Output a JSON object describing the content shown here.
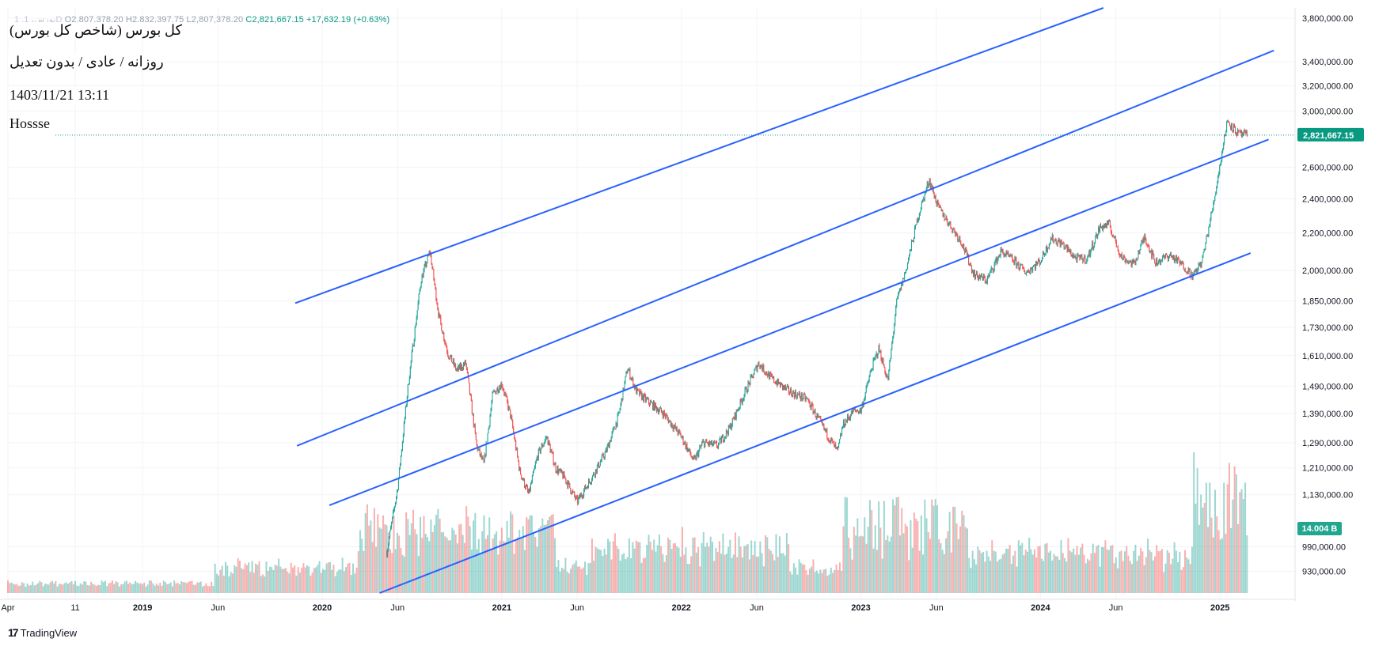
{
  "header": {
    "symbol": "1 ,بورس، 1D",
    "open": "O2,807,378.20",
    "high": "H2,832,397.75",
    "low": "L2,807,378.20",
    "close": "C2,821,667.15",
    "change": "+17,632.19 (+0.63%)"
  },
  "notes": {
    "title": "(کل بورس (شاخص کل بورس",
    "subtitle": "روزانه / عادی / بدون تعدیل",
    "datetime": "1403/11/21 13:11",
    "author": "Hossse"
  },
  "branding": {
    "logo": "17",
    "name": "TradingView"
  },
  "colors": {
    "up": "#26a69a",
    "down": "#ef5350",
    "line": "#2962ff",
    "priceTag": "#089981"
  },
  "chart_data": {
    "type": "candlestick",
    "y_scale": "log",
    "ylim": [
      880000,
      3900000
    ],
    "y_ticks": [
      {
        "label": "3,800,000.00",
        "value": 3800000
      },
      {
        "label": "3,400,000.00",
        "value": 3400000
      },
      {
        "label": "3,200,000.00",
        "value": 3200000
      },
      {
        "label": "3,000,000.00",
        "value": 3000000
      },
      {
        "label": "2,600,000.00",
        "value": 2600000
      },
      {
        "label": "2,400,000.00",
        "value": 2400000
      },
      {
        "label": "2,200,000.00",
        "value": 2200000
      },
      {
        "label": "2,000,000.00",
        "value": 2000000
      },
      {
        "label": "1,850,000.00",
        "value": 1850000
      },
      {
        "label": "1,730,000.00",
        "value": 1730000
      },
      {
        "label": "1,610,000.00",
        "value": 1610000
      },
      {
        "label": "1,490,000.00",
        "value": 1490000
      },
      {
        "label": "1,390,000.00",
        "value": 1390000
      },
      {
        "label": "1,290,000.00",
        "value": 1290000
      },
      {
        "label": "1,210,000.00",
        "value": 1210000
      },
      {
        "label": "1,130,000.00",
        "value": 1130000
      },
      {
        "label": "990,000.00",
        "value": 990000
      },
      {
        "label": "930,000.00",
        "value": 930000
      }
    ],
    "x_range": [
      2018.25,
      2025.4
    ],
    "x_ticks": [
      {
        "label": "Apr",
        "t": 2018.25,
        "bold": false
      },
      {
        "label": "11",
        "t": 2018.625,
        "bold": false
      },
      {
        "label": "2019",
        "t": 2019.0,
        "bold": true
      },
      {
        "label": "Jun",
        "t": 2019.42,
        "bold": false
      },
      {
        "label": "2020",
        "t": 2020.0,
        "bold": true
      },
      {
        "label": "Jun",
        "t": 2020.42,
        "bold": false
      },
      {
        "label": "2021",
        "t": 2021.0,
        "bold": true
      },
      {
        "label": "Jun",
        "t": 2021.42,
        "bold": false
      },
      {
        "label": "2022",
        "t": 2022.0,
        "bold": true
      },
      {
        "label": "Jun",
        "t": 2022.42,
        "bold": false
      },
      {
        "label": "2023",
        "t": 2023.0,
        "bold": true
      },
      {
        "label": "Jun",
        "t": 2023.42,
        "bold": false
      },
      {
        "label": "2024",
        "t": 2024.0,
        "bold": true
      },
      {
        "label": "Jun",
        "t": 2024.42,
        "bold": false
      },
      {
        "label": "2025",
        "t": 2025.0,
        "bold": true
      }
    ],
    "price_path": [
      [
        2020.35,
        950000
      ],
      [
        2020.42,
        1150000
      ],
      [
        2020.48,
        1500000
      ],
      [
        2020.55,
        1950000
      ],
      [
        2020.6,
        2100000
      ],
      [
        2020.65,
        1780000
      ],
      [
        2020.7,
        1620000
      ],
      [
        2020.75,
        1550000
      ],
      [
        2020.8,
        1580000
      ],
      [
        2020.86,
        1280000
      ],
      [
        2020.9,
        1220000
      ],
      [
        2020.95,
        1460000
      ],
      [
        2021.0,
        1500000
      ],
      [
        2021.05,
        1380000
      ],
      [
        2021.1,
        1200000
      ],
      [
        2021.15,
        1130000
      ],
      [
        2021.2,
        1250000
      ],
      [
        2021.25,
        1310000
      ],
      [
        2021.3,
        1210000
      ],
      [
        2021.35,
        1180000
      ],
      [
        2021.42,
        1110000
      ],
      [
        2021.5,
        1180000
      ],
      [
        2021.58,
        1260000
      ],
      [
        2021.65,
        1380000
      ],
      [
        2021.7,
        1560000
      ],
      [
        2021.75,
        1470000
      ],
      [
        2021.8,
        1440000
      ],
      [
        2021.9,
        1390000
      ],
      [
        2022.0,
        1310000
      ],
      [
        2022.07,
        1230000
      ],
      [
        2022.12,
        1290000
      ],
      [
        2022.2,
        1280000
      ],
      [
        2022.27,
        1340000
      ],
      [
        2022.35,
        1460000
      ],
      [
        2022.43,
        1580000
      ],
      [
        2022.5,
        1520000
      ],
      [
        2022.6,
        1470000
      ],
      [
        2022.7,
        1440000
      ],
      [
        2022.8,
        1330000
      ],
      [
        2022.87,
        1260000
      ],
      [
        2022.9,
        1350000
      ],
      [
        2022.96,
        1400000
      ],
      [
        2023.0,
        1400000
      ],
      [
        2023.06,
        1560000
      ],
      [
        2023.1,
        1640000
      ],
      [
        2023.15,
        1510000
      ],
      [
        2023.2,
        1850000
      ],
      [
        2023.25,
        2000000
      ],
      [
        2023.32,
        2300000
      ],
      [
        2023.38,
        2520000
      ],
      [
        2023.43,
        2350000
      ],
      [
        2023.5,
        2240000
      ],
      [
        2023.56,
        2150000
      ],
      [
        2023.63,
        1980000
      ],
      [
        2023.7,
        1950000
      ],
      [
        2023.78,
        2100000
      ],
      [
        2023.85,
        2050000
      ],
      [
        2023.92,
        1990000
      ],
      [
        2024.0,
        2050000
      ],
      [
        2024.06,
        2170000
      ],
      [
        2024.12,
        2140000
      ],
      [
        2024.2,
        2060000
      ],
      [
        2024.26,
        2060000
      ],
      [
        2024.33,
        2230000
      ],
      [
        2024.38,
        2250000
      ],
      [
        2024.45,
        2070000
      ],
      [
        2024.52,
        2030000
      ],
      [
        2024.58,
        2180000
      ],
      [
        2024.64,
        2040000
      ],
      [
        2024.72,
        2080000
      ],
      [
        2024.8,
        2020000
      ],
      [
        2024.85,
        1970000
      ],
      [
        2024.9,
        2050000
      ],
      [
        2024.96,
        2350000
      ],
      [
        2025.0,
        2620000
      ],
      [
        2025.04,
        2930000
      ],
      [
        2025.1,
        2830000
      ],
      [
        2025.15,
        2821667
      ]
    ],
    "trend_lines": [
      {
        "name": "upper-channel",
        "from": [
          2019.85,
          1840000
        ],
        "to": [
          2024.35,
          3900000
        ]
      },
      {
        "name": "second-channel",
        "from": [
          2019.86,
          1280000
        ],
        "to": [
          2025.3,
          3500000
        ]
      },
      {
        "name": "middle-channel",
        "from": [
          2020.04,
          1100000
        ],
        "to": [
          2025.27,
          2790000
        ]
      },
      {
        "name": "lower-channel",
        "from": [
          2020.32,
          880000
        ],
        "to": [
          2025.17,
          2090000
        ]
      }
    ],
    "current_price": {
      "label": "2,821,667.15",
      "value": 2821667.15
    },
    "volume_label": "14.004 B"
  }
}
